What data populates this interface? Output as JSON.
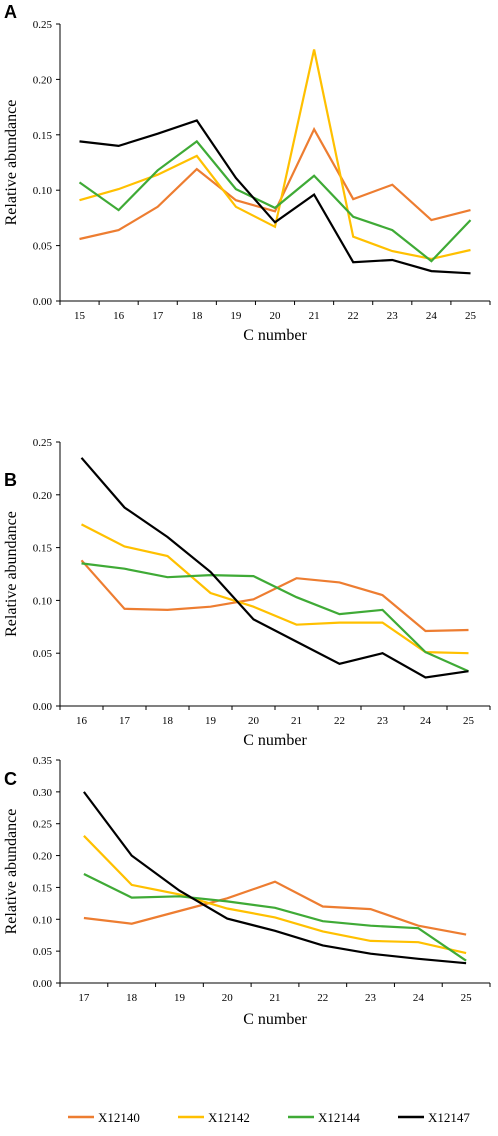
{
  "colors": {
    "X12140": "#ED7D31",
    "X12142": "#FFC000",
    "X12144": "#3FAA36",
    "X12147": "#000000"
  },
  "legend": {
    "placement": "bottom",
    "entries": [
      "X12140",
      "X12142",
      "X12144",
      "X12147"
    ]
  },
  "chart_data": [
    {
      "panel": "A",
      "type": "line",
      "xlabel": "C number",
      "ylabel": "Relative abundance",
      "ylim": [
        0,
        0.25
      ],
      "yticks": [
        "0.00",
        "0.05",
        "0.10",
        "0.15",
        "0.20",
        "0.25"
      ],
      "grid": false,
      "categories": [
        "15",
        "16",
        "17",
        "18",
        "19",
        "20",
        "21",
        "22",
        "23",
        "24",
        "25"
      ],
      "series": [
        {
          "name": "X12140",
          "values": [
            0.056,
            0.064,
            0.085,
            0.119,
            0.091,
            0.081,
            0.155,
            0.092,
            0.105,
            0.073,
            0.082
          ]
        },
        {
          "name": "X12142",
          "values": [
            0.091,
            0.101,
            0.114,
            0.131,
            0.085,
            0.067,
            0.227,
            0.058,
            0.045,
            0.038,
            0.046
          ]
        },
        {
          "name": "X12144",
          "values": [
            0.107,
            0.082,
            0.118,
            0.144,
            0.101,
            0.084,
            0.113,
            0.076,
            0.064,
            0.036,
            0.073
          ]
        },
        {
          "name": "X12147",
          "values": [
            0.144,
            0.14,
            0.151,
            0.163,
            0.111,
            0.071,
            0.096,
            0.035,
            0.037,
            0.027,
            0.025
          ]
        }
      ]
    },
    {
      "panel": "B",
      "type": "line",
      "xlabel": "C number",
      "ylabel": "Relative abundance",
      "ylim": [
        0,
        0.25
      ],
      "yticks": [
        "0.00",
        "0.05",
        "0.10",
        "0.15",
        "0.20",
        "0.25"
      ],
      "grid": false,
      "categories": [
        "16",
        "17",
        "18",
        "19",
        "20",
        "21",
        "22",
        "23",
        "24",
        "25"
      ],
      "series": [
        {
          "name": "X12140",
          "values": [
            0.138,
            0.092,
            0.091,
            0.094,
            0.101,
            0.121,
            0.117,
            0.105,
            0.071,
            0.072
          ]
        },
        {
          "name": "X12142",
          "values": [
            0.172,
            0.151,
            0.142,
            0.107,
            0.094,
            0.077,
            0.079,
            0.079,
            0.051,
            0.05
          ]
        },
        {
          "name": "X12144",
          "values": [
            0.135,
            0.13,
            0.122,
            0.124,
            0.123,
            0.103,
            0.087,
            0.091,
            0.051,
            0.033
          ]
        },
        {
          "name": "X12147",
          "values": [
            0.235,
            0.188,
            0.16,
            0.127,
            0.082,
            0.061,
            0.04,
            0.05,
            0.027,
            0.033
          ]
        }
      ]
    },
    {
      "panel": "C",
      "type": "line",
      "xlabel": "C number",
      "ylabel": "Relative abundance",
      "ylim": [
        0,
        0.35
      ],
      "yticks": [
        "0.00",
        "0.05",
        "0.10",
        "0.15",
        "0.20",
        "0.25",
        "0.30",
        "0.35"
      ],
      "grid": false,
      "categories": [
        "17",
        "18",
        "19",
        "20",
        "21",
        "22",
        "23",
        "24",
        "25"
      ],
      "series": [
        {
          "name": "X12140",
          "values": [
            0.102,
            0.093,
            0.113,
            0.133,
            0.159,
            0.12,
            0.116,
            0.09,
            0.076
          ]
        },
        {
          "name": "X12142",
          "values": [
            0.231,
            0.154,
            0.139,
            0.117,
            0.103,
            0.081,
            0.066,
            0.064,
            0.047
          ]
        },
        {
          "name": "X12144",
          "values": [
            0.171,
            0.134,
            0.136,
            0.128,
            0.118,
            0.097,
            0.09,
            0.086,
            0.035
          ]
        },
        {
          "name": "X12147",
          "values": [
            0.3,
            0.2,
            0.145,
            0.101,
            0.082,
            0.059,
            0.046,
            0.038,
            0.031
          ]
        }
      ]
    }
  ]
}
